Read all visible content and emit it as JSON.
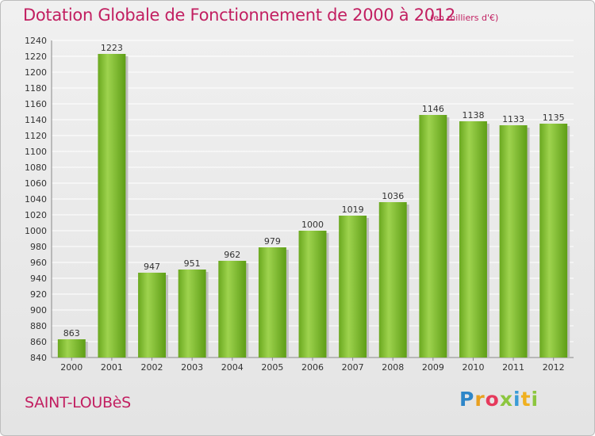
{
  "chart_data": {
    "type": "bar",
    "title": "Dotation Globale de Fonctionnement de 2000 à 2012",
    "subtitle": "(en milliers d'€)",
    "categories": [
      "2000",
      "2001",
      "2002",
      "2003",
      "2004",
      "2005",
      "2006",
      "2007",
      "2008",
      "2009",
      "2010",
      "2011",
      "2012"
    ],
    "values": [
      863,
      1223,
      947,
      951,
      962,
      979,
      1000,
      1019,
      1036,
      1146,
      1138,
      1133,
      1135
    ],
    "ylim": [
      840,
      1240
    ],
    "ytick_step": 20,
    "grid": true,
    "bar_color": "#7cbe2e"
  },
  "footer": {
    "commune": "SAINT-LOUBèS",
    "logo": [
      "P",
      "r",
      "o",
      "x",
      "i",
      "t",
      "i"
    ]
  },
  "colors": {
    "title": "#c21f61",
    "bar_light": "#9ed34e",
    "bar_dark": "#5e9e16"
  }
}
